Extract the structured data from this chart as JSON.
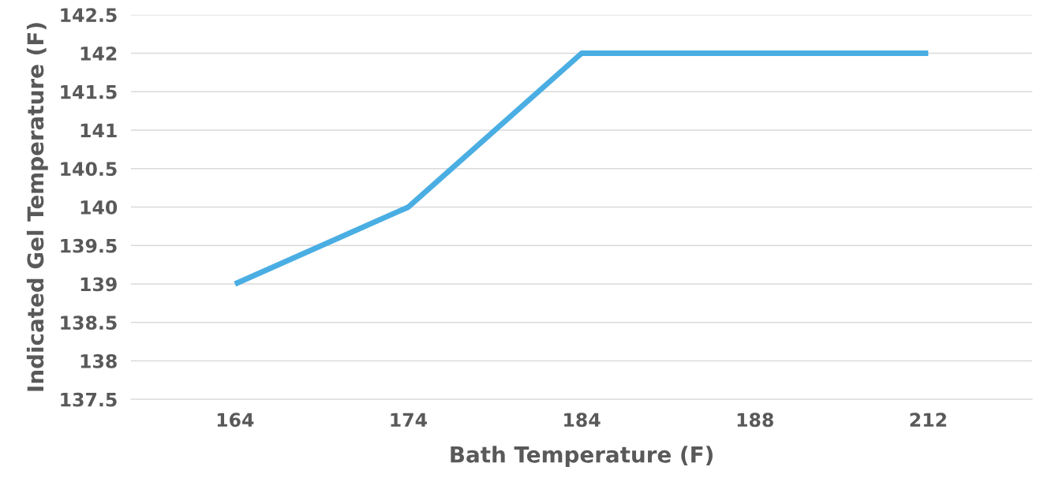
{
  "chart_data": {
    "type": "line",
    "xlabel": "Bath Temperature (F)",
    "ylabel": "Indicated Gel Temperature (F)",
    "categories": [
      "164",
      "174",
      "184",
      "188",
      "212"
    ],
    "series": [
      {
        "color": "#4aaee3",
        "values": [
          139,
          140,
          142,
          142,
          142
        ]
      }
    ],
    "ylim": [
      137.5,
      142.5
    ],
    "yticks": [
      137.5,
      138,
      138.5,
      139,
      139.5,
      140,
      140.5,
      141,
      141.5,
      142,
      142.5
    ],
    "grid": "y",
    "legend": false
  }
}
